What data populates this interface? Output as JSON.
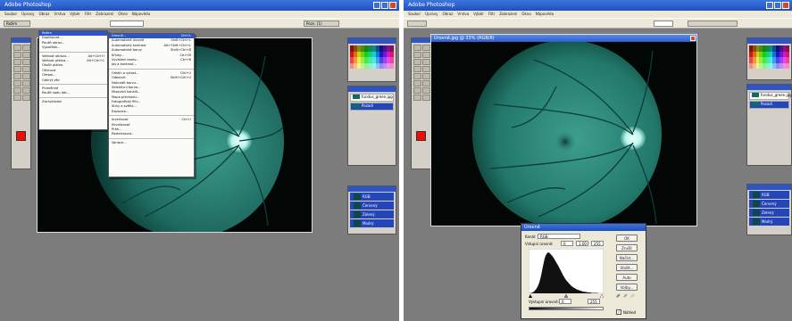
{
  "left": {
    "window_title": "Adobe Photoshop",
    "menubar": [
      "Soubor",
      "Úpravy",
      "Obraz",
      "Vrstva",
      "Výběr",
      "Filtr",
      "Zobrazení",
      "Okno",
      "Nápověda"
    ],
    "options_left": "Režim",
    "options_right": "Pozn. (1)",
    "menu_col1": [
      {
        "label": "Režim",
        "hl": true
      },
      {
        "label": "Duplikovat...",
        "key": ""
      },
      {
        "label": "Použít obraz...",
        "key": ""
      },
      {
        "label": "Vypočítat...",
        "key": ""
      },
      {
        "sep": true
      },
      {
        "label": "Velikost obrazu...",
        "key": "Alt+Ctrl+I"
      },
      {
        "label": "Velikost plátna...",
        "key": "Alt+Ctrl+C"
      },
      {
        "label": "Otočit plátno",
        "key": ""
      },
      {
        "label": "Oříznout",
        "key": ""
      },
      {
        "label": "Ořezat...",
        "key": ""
      },
      {
        "label": "Odkrýt vše",
        "key": ""
      },
      {
        "sep": true
      },
      {
        "label": "Proměnné",
        "key": ""
      },
      {
        "label": "Použít sadu dat...",
        "key": ""
      },
      {
        "sep": true
      },
      {
        "label": "Zachytávání",
        "key": ""
      }
    ],
    "menu_col2": [
      {
        "label": "Úrovně...",
        "key": "Ctrl+L",
        "hl": true
      },
      {
        "label": "Automatické úrovně",
        "key": "Shift+Ctrl+L"
      },
      {
        "label": "Automatický kontrast",
        "key": "Alt+Shift+Ctrl+L"
      },
      {
        "label": "Automatické barvy",
        "key": "Shift+Ctrl+B"
      },
      {
        "label": "Křivky...",
        "key": "Ctrl+M"
      },
      {
        "label": "Vyvážení barev...",
        "key": "Ctrl+B"
      },
      {
        "label": "Jas a kontrast...",
        "key": ""
      },
      {
        "sep": true
      },
      {
        "label": "Odstín a sytost...",
        "key": "Ctrl+U"
      },
      {
        "label": "Odbarvit",
        "key": "Shift+Ctrl+U"
      },
      {
        "label": "Nahradit barvu...",
        "key": ""
      },
      {
        "label": "Selektivní barva...",
        "key": ""
      },
      {
        "label": "Mixování kanálů...",
        "key": ""
      },
      {
        "label": "Mapa přechodu...",
        "key": ""
      },
      {
        "label": "Fotografický filtr...",
        "key": ""
      },
      {
        "label": "Stíny a světla...",
        "key": ""
      },
      {
        "label": "Expozice...",
        "key": ""
      },
      {
        "sep": true
      },
      {
        "label": "Invertovat",
        "key": "Ctrl+I"
      },
      {
        "label": "Ekvalizovat",
        "key": ""
      },
      {
        "label": "Práh...",
        "key": ""
      },
      {
        "label": "Posterizovat...",
        "key": ""
      },
      {
        "sep": true
      },
      {
        "label": "Variace...",
        "key": ""
      }
    ],
    "layers": [
      {
        "name": "fundus_green.jpg",
        "sel": false
      },
      {
        "name": "Pozadí",
        "sel": true
      }
    ],
    "channels": [
      "RGB",
      "Červený",
      "Zelený",
      "Modrý"
    ]
  },
  "right": {
    "window_title": "Adobe Photoshop",
    "menubar": [
      "Soubor",
      "Úpravy",
      "Obraz",
      "Vrstva",
      "Výběr",
      "Filtr",
      "Zobrazení",
      "Okno",
      "Nápověda"
    ],
    "doc_title": "Úrovně.jpg @ 33% (RGB/8)",
    "dialog": {
      "title": "Úrovně",
      "channel_label": "Kanál:",
      "channel_value": "RGB",
      "input_label": "Vstupní úrovně:",
      "input_values": [
        "0",
        "1,00",
        "255"
      ],
      "output_label": "Výstupní úrovně:",
      "output_values": [
        "0",
        "255"
      ],
      "buttons": [
        "OK",
        "Zrušit",
        "Načíst...",
        "Uložit...",
        "Auto",
        "Volby..."
      ],
      "preview_label": "Náhled"
    },
    "histogram": [
      0,
      0,
      0,
      1,
      1,
      2,
      3,
      4,
      6,
      8,
      10,
      13,
      16,
      20,
      25,
      31,
      38,
      46,
      55,
      64,
      72,
      80,
      86,
      90,
      93,
      95,
      96,
      95,
      94,
      92,
      90,
      88,
      86,
      83,
      80,
      77,
      74,
      71,
      68,
      65,
      62,
      58,
      55,
      51,
      48,
      44,
      41,
      38,
      35,
      32,
      30,
      28,
      26,
      24,
      22,
      20,
      18,
      17,
      15,
      14,
      13,
      12,
      11,
      10,
      9,
      8,
      8,
      7,
      6,
      6,
      5,
      5,
      4,
      4,
      4,
      3,
      3,
      3,
      2,
      2,
      2,
      2,
      2,
      1,
      1,
      1,
      1,
      1,
      1,
      1,
      1,
      1,
      0,
      0,
      0,
      0,
      0,
      0,
      0,
      0
    ],
    "layers": [
      {
        "name": "fundus_green.jpg",
        "sel": false
      },
      {
        "name": "Pozadí",
        "sel": true
      }
    ],
    "channels": [
      "RGB",
      "Červený",
      "Zelený",
      "Modrý"
    ]
  },
  "colors": {
    "accent": "#2b55c8",
    "fundus_light": "#3a9a8a",
    "fundus_dark": "#0b3a34",
    "optic_disc": "#bff5ee",
    "gray_bg": "#7c7c7c"
  }
}
